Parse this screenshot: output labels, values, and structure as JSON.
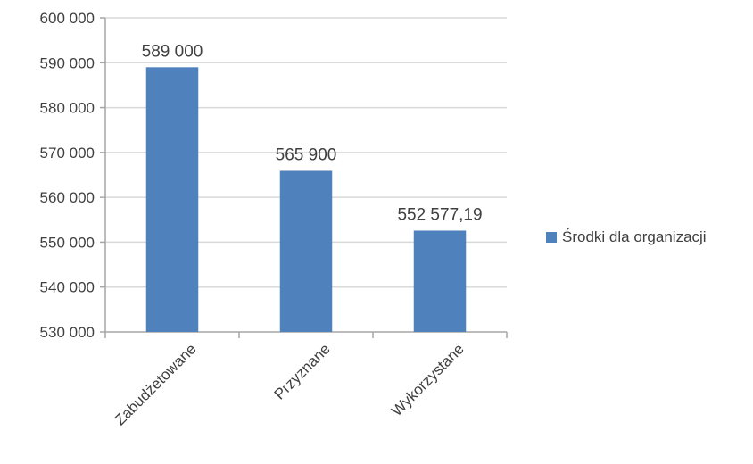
{
  "chart_data": {
    "type": "bar",
    "categories": [
      "Zabudżetowane",
      "Przyznane",
      "Wykorzystane"
    ],
    "series": [
      {
        "name": "Środki dla organizacji",
        "values": [
          589000,
          565900,
          552577.19
        ],
        "color": "#4F81BD"
      }
    ],
    "data_labels": [
      "589 000",
      "565 900",
      "552 577,19"
    ],
    "yticks": [
      "530 000",
      "540 000",
      "550 000",
      "560 000",
      "570 000",
      "580 000",
      "590 000",
      "600 000"
    ],
    "ylim": [
      530000,
      600000
    ],
    "grid": true,
    "legend_position": "right",
    "title": "",
    "xlabel": "",
    "ylabel": ""
  }
}
